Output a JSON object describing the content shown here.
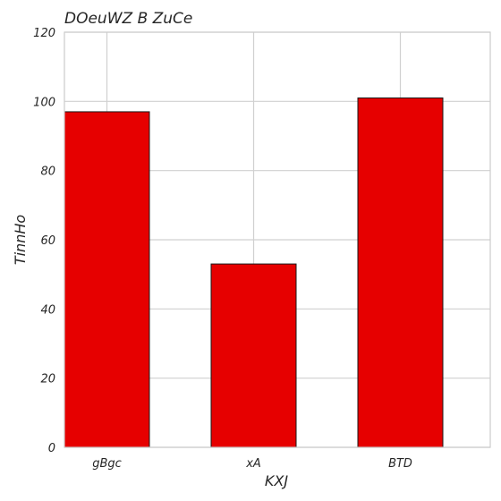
{
  "chart_data": {
    "type": "bar",
    "title": "DOeuWZ B ZuCe",
    "xlabel": "KXJ",
    "ylabel": "TinnHo",
    "categories": [
      "gBgc",
      "xA",
      "BTD"
    ],
    "values": [
      97,
      53,
      101
    ],
    "ylim": [
      0,
      120
    ],
    "yticks": [
      "0",
      "20",
      "40",
      "60",
      "80",
      "100",
      "120"
    ],
    "grid": true,
    "bar_color": "#e60000",
    "edge_color": "#1a1a1a"
  }
}
